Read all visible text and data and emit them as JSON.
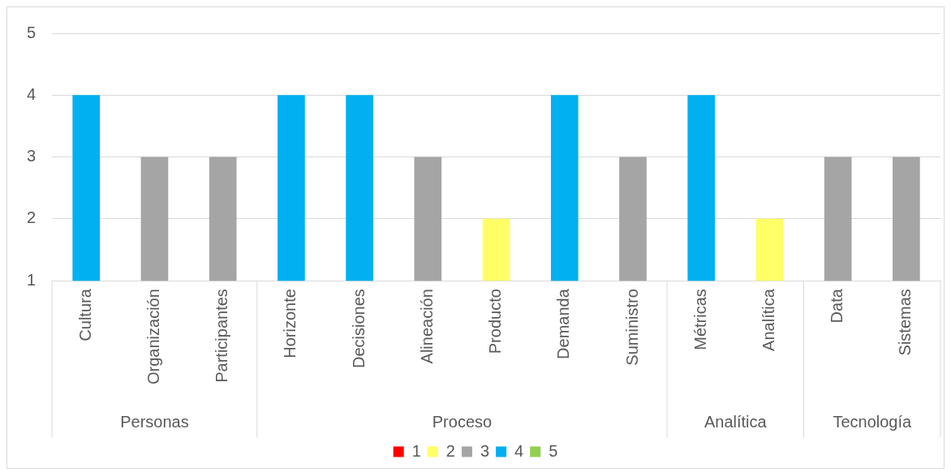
{
  "chart_data": {
    "type": "bar",
    "categories": [
      "Cultura",
      "Organización",
      "Participantes",
      "Horizonte",
      "Decisiones",
      "Alineación",
      "Producto",
      "Demanda",
      "Suministro",
      "Métricas",
      "Analítica",
      "Data",
      "Sistemas"
    ],
    "series": [
      {
        "name": "1",
        "color": "#ff0000",
        "values": [
          null,
          null,
          null,
          null,
          null,
          null,
          null,
          null,
          null,
          null,
          null,
          null,
          null
        ]
      },
      {
        "name": "2",
        "color": "#ffff66",
        "values": [
          null,
          null,
          null,
          null,
          null,
          null,
          2,
          null,
          null,
          null,
          2,
          null,
          null
        ]
      },
      {
        "name": "3",
        "color": "#a5a5a5",
        "values": [
          null,
          3,
          3,
          null,
          null,
          3,
          null,
          null,
          3,
          null,
          null,
          3,
          3
        ]
      },
      {
        "name": "4",
        "color": "#00b0f0",
        "values": [
          4,
          null,
          null,
          4,
          4,
          null,
          null,
          4,
          null,
          4,
          null,
          null,
          null
        ]
      },
      {
        "name": "5",
        "color": "#92d050",
        "values": [
          null,
          null,
          null,
          null,
          null,
          null,
          null,
          null,
          null,
          null,
          null,
          null,
          null
        ]
      }
    ],
    "ylim": [
      1,
      5
    ],
    "yticks": [
      1,
      2,
      3,
      4,
      5
    ],
    "grid": "y",
    "legend": "bottom",
    "annotations": [
      "Personas",
      "Proceso",
      "Analítica",
      "Tecnología"
    ]
  }
}
